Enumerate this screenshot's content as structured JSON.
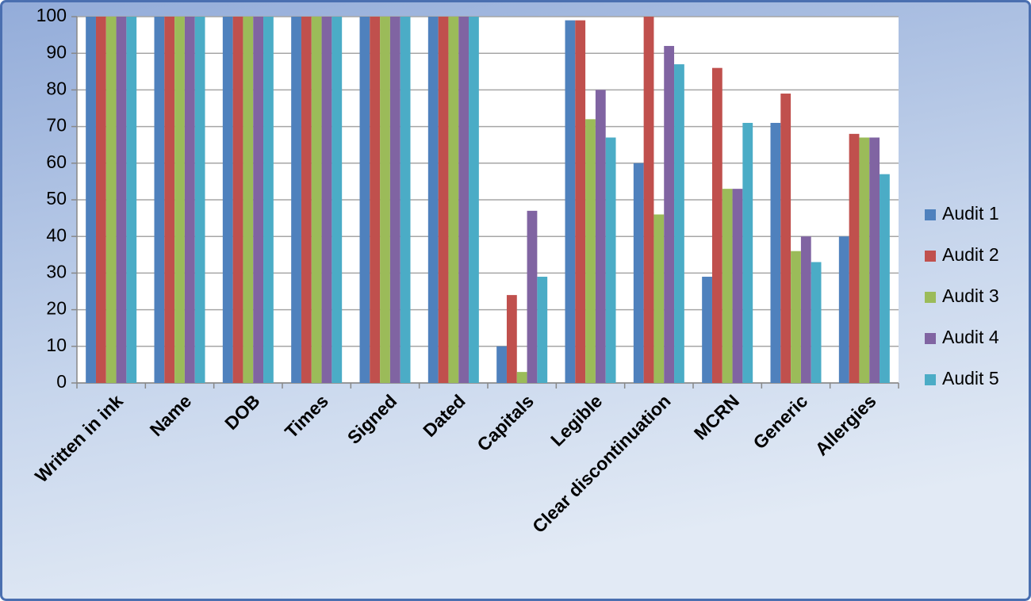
{
  "chart_data": {
    "type": "bar",
    "categories": [
      "Written in ink",
      "Name",
      "DOB",
      "Times",
      "Signed",
      "Dated",
      "Capitals",
      "Legible",
      "Clear discontinuation",
      "MCRN",
      "Generic",
      "Allergies"
    ],
    "series": [
      {
        "name": "Audit 1",
        "color": "#4f81bd",
        "values": [
          100,
          100,
          100,
          100,
          100,
          100,
          10,
          99,
          60,
          29,
          71,
          40
        ]
      },
      {
        "name": "Audit 2",
        "color": "#c0504d",
        "values": [
          100,
          100,
          100,
          100,
          100,
          100,
          24,
          99,
          100,
          86,
          79,
          68
        ]
      },
      {
        "name": "Audit 3",
        "color": "#9bbb59",
        "values": [
          100,
          100,
          100,
          100,
          100,
          100,
          3,
          72,
          46,
          53,
          36,
          67
        ]
      },
      {
        "name": "Audit 4",
        "color": "#8064a2",
        "values": [
          100,
          100,
          100,
          100,
          100,
          100,
          47,
          80,
          92,
          53,
          40,
          67
        ]
      },
      {
        "name": "Audit 5",
        "color": "#4bacc6",
        "values": [
          100,
          100,
          100,
          100,
          100,
          100,
          29,
          67,
          87,
          71,
          33,
          57
        ]
      }
    ],
    "ylim": [
      0,
      100
    ],
    "yticks": [
      0,
      10,
      20,
      30,
      40,
      50,
      60,
      70,
      80,
      90,
      100
    ],
    "grid": true,
    "legend": "right"
  }
}
